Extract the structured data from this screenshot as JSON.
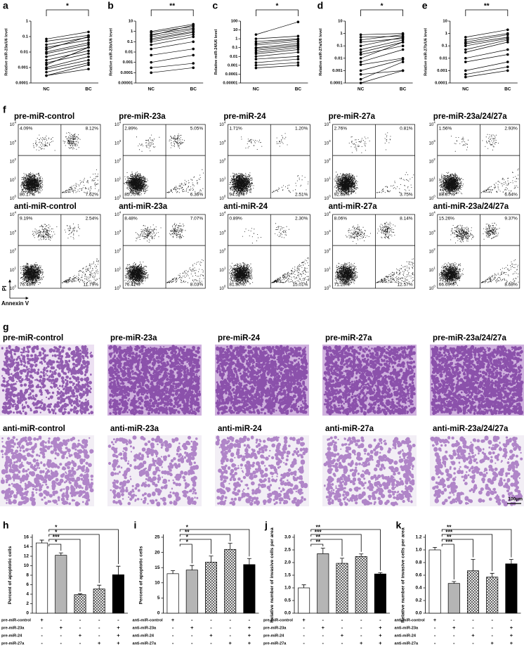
{
  "panels_top": [
    {
      "letter": "a",
      "ylabel": "Relative miR-23a/U6 level",
      "categories": [
        "NC",
        "BC"
      ],
      "significance": "*",
      "log": true,
      "ylim": [
        0.0001,
        1
      ],
      "yticks": [
        1,
        0.1,
        0.01,
        0.001,
        0.0001
      ],
      "pairs": [
        [
          0.07,
          0.2
        ],
        [
          0.05,
          0.12
        ],
        [
          0.03,
          0.09
        ],
        [
          0.02,
          0.06
        ],
        [
          0.015,
          0.1
        ],
        [
          0.01,
          0.04
        ],
        [
          0.008,
          0.03
        ],
        [
          0.005,
          0.02
        ],
        [
          0.003,
          0.012
        ],
        [
          0.002,
          0.008
        ],
        [
          0.0015,
          0.02
        ],
        [
          0.001,
          0.005
        ],
        [
          0.0008,
          0.003
        ],
        [
          0.0005,
          0.002
        ],
        [
          0.0003,
          0.0008
        ],
        [
          0.0003,
          0.0015
        ]
      ]
    },
    {
      "letter": "b",
      "ylabel": "Relative miR-23b/U6 level",
      "categories": [
        "NC",
        "BC"
      ],
      "significance": "**",
      "log": true,
      "ylim": [
        1e-05,
        10
      ],
      "yticks": [
        10,
        1,
        0.1,
        0.01,
        0.001,
        0.0001,
        1e-05
      ],
      "pairs": [
        [
          1,
          5
        ],
        [
          0.8,
          3
        ],
        [
          0.5,
          2
        ],
        [
          0.4,
          4
        ],
        [
          0.3,
          1.5
        ],
        [
          0.2,
          1
        ],
        [
          0.15,
          0.8
        ],
        [
          0.1,
          0.5
        ],
        [
          0.05,
          0.3
        ],
        [
          0.02,
          0.1
        ],
        [
          0.005,
          0.02
        ],
        [
          0.001,
          0.005
        ],
        [
          0.0003,
          0.0008
        ],
        [
          0.0001,
          0.0003
        ]
      ]
    },
    {
      "letter": "c",
      "ylabel": "Relative miR-24/U6 level",
      "categories": [
        "NC",
        "BC"
      ],
      "significance": "*",
      "log": true,
      "ylim": [
        1e-05,
        100
      ],
      "yticks": [
        100,
        10,
        1,
        0.1,
        0.01,
        0.001,
        0.0001,
        1e-05
      ],
      "pairs": [
        [
          3,
          80
        ],
        [
          1,
          2
        ],
        [
          0.5,
          1
        ],
        [
          0.3,
          0.8
        ],
        [
          0.2,
          0.5
        ],
        [
          0.1,
          0.3
        ],
        [
          0.08,
          0.2
        ],
        [
          0.05,
          0.15
        ],
        [
          0.03,
          0.1
        ],
        [
          0.02,
          0.06
        ],
        [
          0.01,
          0.03
        ],
        [
          0.005,
          0.01
        ],
        [
          0.002,
          0.005
        ],
        [
          0.001,
          0.002
        ],
        [
          0.0005,
          0.001
        ]
      ]
    },
    {
      "letter": "d",
      "ylabel": "Relative miR-27a/U6 level",
      "categories": [
        "NC",
        "BC"
      ],
      "significance": "*",
      "log": true,
      "ylim": [
        0.0001,
        10
      ],
      "yticks": [
        10,
        1,
        0.1,
        0.01,
        0.001,
        0.0001
      ],
      "pairs": [
        [
          0.8,
          1
        ],
        [
          0.5,
          0.6
        ],
        [
          0.3,
          0.8
        ],
        [
          0.2,
          0.4
        ],
        [
          0.1,
          0.5
        ],
        [
          0.05,
          0.3
        ],
        [
          0.03,
          0.2
        ],
        [
          0.02,
          0.1
        ],
        [
          0.01,
          0.2
        ],
        [
          0.005,
          0.05
        ],
        [
          0.003,
          0.01
        ],
        [
          0.001,
          0.008
        ],
        [
          0.0005,
          0.001
        ],
        [
          0.0002,
          0.005
        ],
        [
          0.0001,
          0.001
        ]
      ]
    },
    {
      "letter": "e",
      "ylabel": "Relative miR-27b/U6 level",
      "categories": [
        "NC",
        "BC"
      ],
      "significance": "**",
      "log": true,
      "ylim": [
        0.0001,
        10
      ],
      "yticks": [
        10,
        1,
        0.1,
        0.01,
        0.001,
        0.0001
      ],
      "pairs": [
        [
          0.5,
          2
        ],
        [
          0.3,
          1
        ],
        [
          0.2,
          0.8
        ],
        [
          0.15,
          0.5
        ],
        [
          0.1,
          0.4
        ],
        [
          0.05,
          0.3
        ],
        [
          0.03,
          0.2
        ],
        [
          0.01,
          0.05
        ],
        [
          0.005,
          0.02
        ],
        [
          0.001,
          0.005
        ],
        [
          0.0005,
          0.002
        ],
        [
          0.0003,
          0.001
        ]
      ]
    }
  ],
  "flow": {
    "letter": "f",
    "ylabel": "PI",
    "xlabel": "Annexin V",
    "tick_base": "10",
    "tick_exponents": [
      "4",
      "3",
      "2",
      "1",
      "0"
    ],
    "panels": [
      {
        "title": "pre-miR-control",
        "quadrants": [
          "4.09%",
          "8.12%",
          "80.17%",
          "7.62%"
        ]
      },
      {
        "title": "pre-miR-23a",
        "quadrants": [
          "2.89%",
          "5.05%",
          "85.70%",
          "6.36%"
        ]
      },
      {
        "title": "pre-miR-24",
        "quadrants": [
          "1.71%",
          "1.20%",
          "94.58%",
          "2.51%"
        ]
      },
      {
        "title": "pre-miR-27a",
        "quadrants": [
          "2.76%",
          "0.81%",
          "92.68%",
          "3.75%"
        ]
      },
      {
        "title": "pre-miR-23a/24/27a",
        "quadrants": [
          "1.56%",
          "2.93%",
          "88.87%",
          "6.64%"
        ]
      },
      {
        "title": "anti-miR-control",
        "quadrants": [
          "9.19%",
          "2.54%",
          "76.48%",
          "11.79%"
        ]
      },
      {
        "title": "anti-miR-23a",
        "quadrants": [
          "8.48%",
          "7.07%",
          "76.42%",
          "8.03%"
        ]
      },
      {
        "title": "anti-miR-24",
        "quadrants": [
          "0.89%",
          "2.30%",
          "81.80%",
          "15.01%"
        ]
      },
      {
        "title": "anti-miR-27a",
        "quadrants": [
          "8.06%",
          "8.14%",
          "71.23%",
          "12.57%"
        ]
      },
      {
        "title": "anti-miR-23a/24/27a",
        "quadrants": [
          "15.26%",
          "9.37%",
          "66.69%",
          "8.68%"
        ]
      }
    ]
  },
  "invasion": {
    "letter": "g",
    "scale_bar": "100μm",
    "panels": [
      {
        "title": "pre-miR-control"
      },
      {
        "title": "pre-miR-23a"
      },
      {
        "title": "pre-miR-24"
      },
      {
        "title": "pre-miR-27a"
      },
      {
        "title": "pre-miR-23a/24/27a"
      },
      {
        "title": "anti-miR-control"
      },
      {
        "title": "anti-miR-23a"
      },
      {
        "title": "anti-miR-24"
      },
      {
        "title": "anti-miR-27a"
      },
      {
        "title": "anti-miR-23a/24/27a"
      }
    ]
  },
  "bars": [
    {
      "letter": "h",
      "ylabel": "Percent of apoptotic cells",
      "ylim": [
        0,
        16
      ],
      "yticks": [
        0,
        2,
        4,
        6,
        8,
        10,
        12,
        14,
        16
      ],
      "values": [
        14.8,
        12.2,
        3.9,
        5.1,
        8.1
      ],
      "errors": [
        0.6,
        0.5,
        0.2,
        0.8,
        1.8
      ],
      "colors": [
        "#ffffff",
        "#b5b5b5",
        "#ffffff",
        "#ffffff",
        "#000000"
      ],
      "patterns": [
        "solid",
        "solid",
        "crosshatch",
        "crosshatch",
        "solid"
      ],
      "significance": [
        "*",
        "***",
        "*",
        "*"
      ],
      "rows": [
        {
          "label": "pre-miR-control",
          "signs": [
            "+",
            "-",
            "-",
            "-",
            "-"
          ]
        },
        {
          "label": "pre-miR-23a",
          "signs": [
            "-",
            "+",
            "-",
            "-",
            "+"
          ]
        },
        {
          "label": "pre-miR-24",
          "signs": [
            "-",
            "-",
            "+",
            "-",
            "+"
          ]
        },
        {
          "label": "pre-miR-27a",
          "signs": [
            "-",
            "-",
            "-",
            "+",
            "+"
          ]
        }
      ]
    },
    {
      "letter": "i",
      "ylabel": "Percent of apoptotic cells",
      "ylim": [
        0,
        25
      ],
      "yticks": [
        0,
        5,
        10,
        15,
        20,
        25
      ],
      "values": [
        13.0,
        14.2,
        16.8,
        21.0,
        16.0
      ],
      "errors": [
        1.0,
        1.5,
        2.0,
        2.0,
        2.0
      ],
      "colors": [
        "#ffffff",
        "#b5b5b5",
        "#ffffff",
        "#ffffff",
        "#000000"
      ],
      "patterns": [
        "solid",
        "solid",
        "crosshatch",
        "crosshatch",
        "solid"
      ],
      "significance": [
        "*",
        "*",
        "**",
        "*"
      ],
      "rows": [
        {
          "label": "anti-miR-control",
          "signs": [
            "+",
            "-",
            "-",
            "-",
            "-"
          ]
        },
        {
          "label": "anti-miR-23a",
          "signs": [
            "-",
            "+",
            "-",
            "-",
            "+"
          ]
        },
        {
          "label": "anti-miR-24",
          "signs": [
            "-",
            "-",
            "+",
            "-",
            "+"
          ]
        },
        {
          "label": "anti-miR-27a",
          "signs": [
            "-",
            "-",
            "-",
            "+",
            "+"
          ]
        }
      ]
    },
    {
      "letter": "j",
      "ylabel": "Relative number of invasive cells per area",
      "ylim": [
        0,
        3
      ],
      "yticks": [
        {
          "value": 0,
          "label": "0.0"
        },
        0.5,
        {
          "value": 1,
          "label": "1.0"
        },
        1.5,
        {
          "value": 2,
          "label": "2.0"
        },
        2.5,
        {
          "value": 3,
          "label": "3.0"
        }
      ],
      "values": [
        1.0,
        2.35,
        1.97,
        2.24,
        1.55
      ],
      "errors": [
        0.12,
        0.22,
        0.2,
        0.1,
        0.05
      ],
      "colors": [
        "#ffffff",
        "#b5b5b5",
        "#ffffff",
        "#ffffff",
        "#000000"
      ],
      "patterns": [
        "solid",
        "solid",
        "crosshatch",
        "crosshatch",
        "solid"
      ],
      "significance": [
        "**",
        "**",
        "***",
        "**"
      ],
      "rows": [
        {
          "label": "pre-miR-control",
          "signs": [
            "+",
            "-",
            "-",
            "-",
            "-"
          ]
        },
        {
          "label": "pre-miR-23a",
          "signs": [
            "-",
            "+",
            "-",
            "-",
            "+"
          ]
        },
        {
          "label": "pre-miR-24",
          "signs": [
            "-",
            "-",
            "+",
            "-",
            "+"
          ]
        },
        {
          "label": "pre-miR-27a",
          "signs": [
            "-",
            "-",
            "-",
            "+",
            "+"
          ]
        }
      ]
    },
    {
      "letter": "k",
      "ylabel": "Relative number of invasive cells per area",
      "ylim": [
        0,
        1.2
      ],
      "yticks": [
        {
          "value": 0,
          "label": "0.0"
        },
        0.2,
        0.4,
        0.6,
        0.8,
        {
          "value": 1,
          "label": "1.0"
        },
        1.2
      ],
      "values": [
        1.0,
        0.47,
        0.67,
        0.57,
        0.78
      ],
      "errors": [
        0.04,
        0.03,
        0.18,
        0.06,
        0.07
      ],
      "colors": [
        "#ffffff",
        "#b5b5b5",
        "#ffffff",
        "#ffffff",
        "#000000"
      ],
      "patterns": [
        "solid",
        "solid",
        "crosshatch",
        "crosshatch",
        "solid"
      ],
      "significance": [
        "***",
        "**",
        "***",
        "**"
      ],
      "rows": [
        {
          "label": "anti-miR-control",
          "signs": [
            "+",
            "-",
            "-",
            "-",
            "-"
          ]
        },
        {
          "label": "anti-miR-23a",
          "signs": [
            "-",
            "+",
            "-",
            "-",
            "+"
          ]
        },
        {
          "label": "anti-miR-24",
          "signs": [
            "-",
            "-",
            "+",
            "-",
            "+"
          ]
        },
        {
          "label": "anti-miR-27a",
          "signs": [
            "-",
            "-",
            "-",
            "+",
            "+"
          ]
        }
      ]
    }
  ]
}
